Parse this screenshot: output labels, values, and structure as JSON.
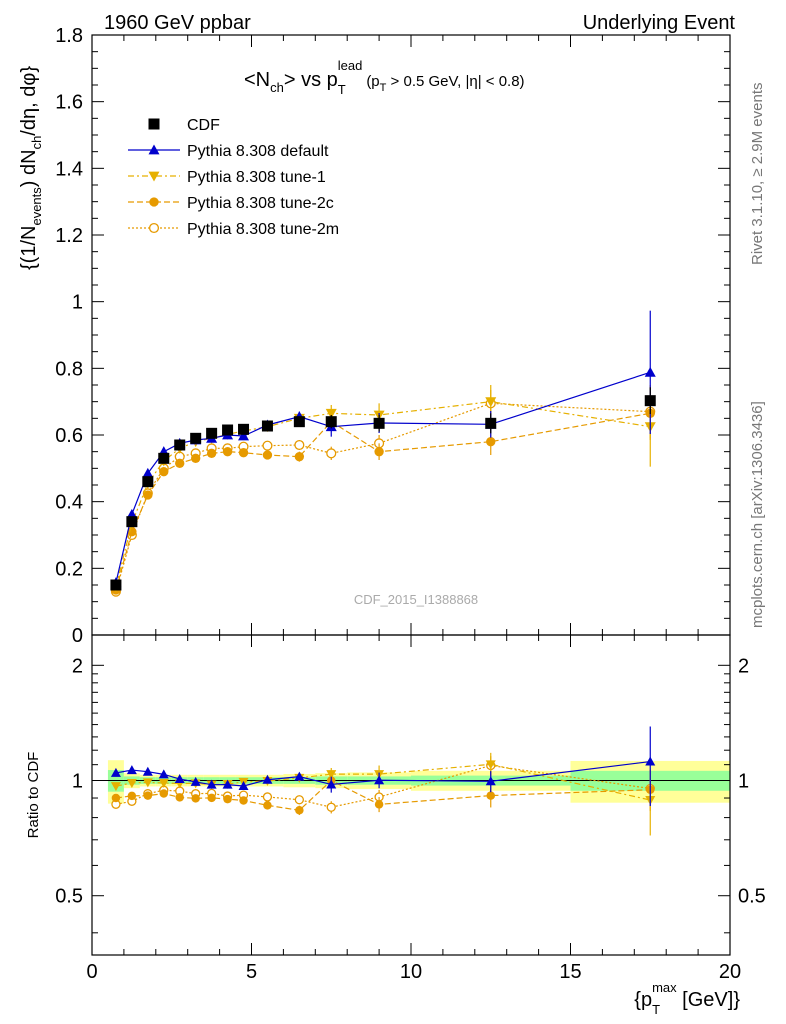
{
  "header": {
    "left": "1960 GeV ppbar",
    "right": "Underlying Event"
  },
  "side": {
    "rivet": "Rivet 3.1.10, ≥ 2.9M events",
    "mcplots": "mcplots.cern.ch [arXiv:1306.3436]"
  },
  "title": {
    "main": "<N",
    "sub_ch": "ch",
    "vs": "> vs p",
    "sub_T": "T",
    "sup_lead": "lead",
    "cut": "(p",
    "cut_sub": "T",
    "cut_rest": " > 0.5 GeV, |η| < 0.8)"
  },
  "watermark": "CDF_2015_I1388868",
  "chart_data": {
    "type": "line",
    "xlabel": "{p_T^max [GeV]}",
    "ylabel_main": "{(1/N_events) dN_ch/dη, dφ}",
    "ylabel_ratio": "Ratio to CDF",
    "xlim": [
      0,
      20
    ],
    "ylim": [
      0,
      1.8
    ],
    "ratio_ylim": [
      0.35,
      2.4
    ],
    "x_ticks": [
      0,
      5,
      10,
      15,
      20
    ],
    "y_ticks": [
      0,
      0.2,
      0.4,
      0.6,
      0.8,
      1,
      1.2,
      1.4,
      1.6,
      1.8
    ],
    "y_tick_labels": [
      "0",
      "0.2",
      "0.4",
      "0.6",
      "0.8",
      "1",
      "1.2",
      "1.4",
      "1.6",
      "1.8"
    ],
    "ratio_ticks": [
      0.5,
      1,
      2
    ],
    "ratio_tick_labels": [
      "0.5",
      "1",
      "2"
    ],
    "legend_position": "top-left",
    "x": [
      0.75,
      1.25,
      1.75,
      2.25,
      2.75,
      3.25,
      3.75,
      4.25,
      4.75,
      5.5,
      6.5,
      7.5,
      9.0,
      12.5,
      17.5
    ],
    "series": [
      {
        "name": "CDF",
        "color": "#000000",
        "marker": "square",
        "line": "none",
        "values": [
          0.15,
          0.34,
          0.46,
          0.53,
          0.57,
          0.59,
          0.605,
          0.615,
          0.617,
          0.627,
          0.64,
          0.64,
          0.635,
          0.635,
          0.703
        ],
        "errors": [
          0.005,
          0.006,
          0.007,
          0.008,
          0.008,
          0.008,
          0.009,
          0.009,
          0.01,
          0.01,
          0.015,
          0.02,
          0.025,
          0.03,
          0.04
        ]
      },
      {
        "name": "Pythia 8.308 default",
        "color": "#0000cc",
        "marker": "triangle-up",
        "line": "solid",
        "values": [
          0.157,
          0.362,
          0.485,
          0.55,
          0.575,
          0.585,
          0.59,
          0.6,
          0.597,
          0.63,
          0.655,
          0.625,
          0.636,
          0.632,
          0.788
        ],
        "errors": [
          0.003,
          0.004,
          0.005,
          0.006,
          0.007,
          0.008,
          0.008,
          0.009,
          0.01,
          0.01,
          0.015,
          0.03,
          0.03,
          0.04,
          0.185
        ]
      },
      {
        "name": "Pythia 8.308 tune-1",
        "color": "#e6b000",
        "marker": "triangle-down",
        "line": "dashdot",
        "values": [
          0.145,
          0.335,
          0.455,
          0.522,
          0.56,
          0.58,
          0.59,
          0.602,
          0.612,
          0.625,
          0.65,
          0.665,
          0.66,
          0.7,
          0.625
        ],
        "errors": [
          0.003,
          0.004,
          0.005,
          0.006,
          0.007,
          0.008,
          0.008,
          0.009,
          0.01,
          0.012,
          0.015,
          0.025,
          0.035,
          0.05,
          0.12
        ]
      },
      {
        "name": "Pythia 8.308 tune-2c",
        "color": "#e69a00",
        "marker": "circle",
        "line": "dashed",
        "values": [
          0.135,
          0.31,
          0.42,
          0.49,
          0.515,
          0.53,
          0.545,
          0.55,
          0.547,
          0.54,
          0.535,
          0.64,
          0.55,
          0.58,
          0.665
        ],
        "errors": [
          0.003,
          0.004,
          0.005,
          0.006,
          0.007,
          0.008,
          0.008,
          0.009,
          0.01,
          0.012,
          0.015,
          0.025,
          0.025,
          0.04,
          0.08
        ]
      },
      {
        "name": "Pythia 8.308 tune-2m",
        "color": "#e69a00",
        "marker": "circle-open",
        "line": "dotted",
        "values": [
          0.13,
          0.3,
          0.425,
          0.5,
          0.535,
          0.545,
          0.56,
          0.56,
          0.565,
          0.568,
          0.57,
          0.545,
          0.575,
          0.695,
          0.67
        ],
        "errors": [
          0.003,
          0.004,
          0.005,
          0.006,
          0.007,
          0.008,
          0.008,
          0.009,
          0.01,
          0.012,
          0.015,
          0.02,
          0.025,
          0.04,
          0.08
        ]
      }
    ],
    "data_bands": {
      "x_edges": [
        [
          0.5,
          1.0
        ],
        [
          1.0,
          1.5
        ],
        [
          1.5,
          2.0
        ],
        [
          2.0,
          2.5
        ],
        [
          2.5,
          3.0
        ],
        [
          3.0,
          3.5
        ],
        [
          3.5,
          4.0
        ],
        [
          4.0,
          4.5
        ],
        [
          4.5,
          5.0
        ],
        [
          5.0,
          6.0
        ],
        [
          6.0,
          7.0
        ],
        [
          7.0,
          8.0
        ],
        [
          8.0,
          10.0
        ],
        [
          10.0,
          15.0
        ],
        [
          15.0,
          20.0
        ]
      ],
      "inner": [
        0.13,
        0.05,
        0.04,
        0.04,
        0.04,
        0.04,
        0.04,
        0.04,
        0.04,
        0.04,
        0.04,
        0.05,
        0.05,
        0.06,
        0.12
      ],
      "outer": [
        0.26,
        0.09,
        0.07,
        0.07,
        0.07,
        0.07,
        0.07,
        0.07,
        0.07,
        0.07,
        0.08,
        0.09,
        0.1,
        0.12,
        0.25
      ],
      "inner_color": "#99ff99",
      "outer_color": "#ffff99"
    }
  }
}
